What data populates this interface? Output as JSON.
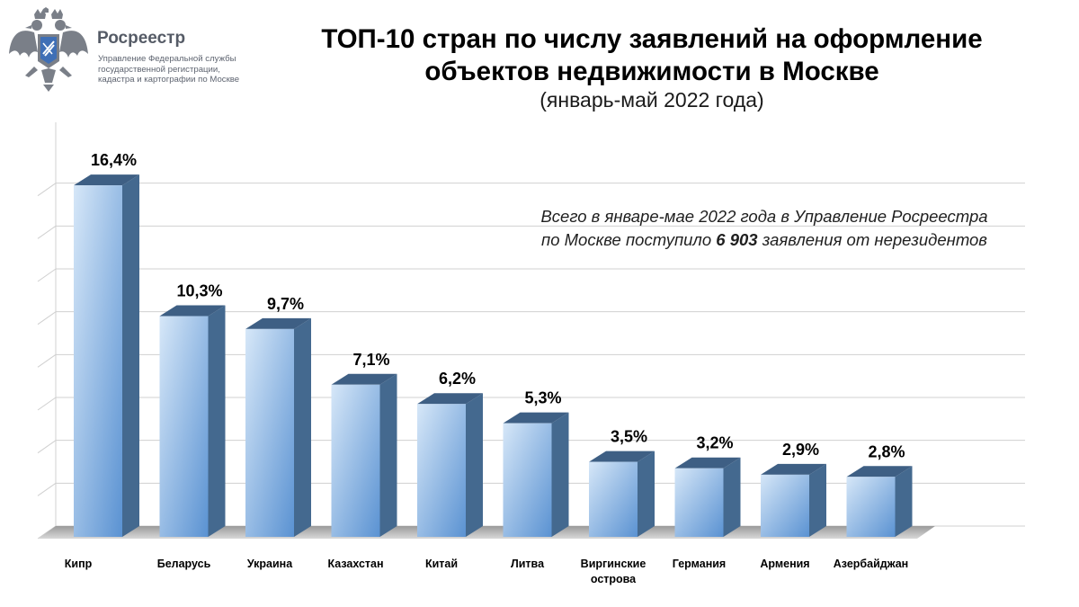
{
  "header": {
    "org_name": "Росреестр",
    "org_sub": [
      "Управление Федеральной службы",
      "государственной регистрации,",
      "кадастра и картографии по Москве"
    ],
    "logo": "double-headed-eagle-emblem"
  },
  "note": {
    "part1": "Всего в январе-мае  2022 года в Управление  Росреестра",
    "part2": "по Москве  поступило",
    "total": "6 903",
    "part3": "заявления от нерезидентов"
  },
  "colors": {
    "bar_front_top": "#cfe2f6",
    "bar_front_bottom": "#5b93d3",
    "bar_side": "#44698f",
    "bar_top": "#3e5f84",
    "grid": "#d0d0d0"
  },
  "chart_data": {
    "type": "bar",
    "title": "ТОП-10 стран по числу заявлений на оформление объектов недвижимости в Москве",
    "title_lines": [
      "ТОП-10 стран по числу заявлений на оформление",
      "объектов недвижимости в Москве"
    ],
    "subtitle": "(январь-май 2022 года)",
    "categories": [
      [
        "Кипр"
      ],
      [
        "Беларусь"
      ],
      [
        "Украина"
      ],
      [
        "Казахстан"
      ],
      [
        "Китай"
      ],
      [
        "Литва"
      ],
      [
        "Виргинские",
        "острова"
      ],
      [
        "Германия"
      ],
      [
        "Армения"
      ],
      [
        "Азербайджан"
      ]
    ],
    "values": [
      16.4,
      10.3,
      9.7,
      7.1,
      6.2,
      5.3,
      3.5,
      3.2,
      2.9,
      2.8
    ],
    "labels": [
      "16,4%",
      "10,3%",
      "9,7%",
      "7,1%",
      "6,2%",
      "5,3%",
      "3,5%",
      "3,2%",
      "2,9%",
      "2,8%"
    ],
    "unit": "%",
    "xlabel": "",
    "ylabel": "",
    "ylim": [
      0,
      18
    ],
    "grid": true,
    "style": "3d-bar"
  }
}
